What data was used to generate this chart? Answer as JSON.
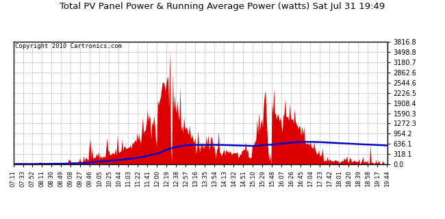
{
  "title": "Total PV Panel Power & Running Average Power (watts) Sat Jul 31 19:49",
  "copyright": "Copyright 2010 Cartronics.com",
  "background_color": "#ffffff",
  "plot_bg_color": "#ffffff",
  "grid_color": "#bbbbbb",
  "bar_color": "#dd0000",
  "line_color": "#0000cc",
  "yticks": [
    0.0,
    318.1,
    636.1,
    954.2,
    1272.3,
    1590.3,
    1908.4,
    2226.5,
    2544.6,
    2862.6,
    3180.7,
    3498.8,
    3816.8
  ],
  "ymax": 3816.8,
  "xtick_labels": [
    "07:11",
    "07:33",
    "07:52",
    "08:11",
    "08:30",
    "08:49",
    "09:08",
    "09:27",
    "09:46",
    "10:05",
    "10:25",
    "10:44",
    "11:03",
    "11:22",
    "11:41",
    "12:00",
    "12:19",
    "12:38",
    "12:57",
    "13:16",
    "13:35",
    "13:54",
    "14:13",
    "14:32",
    "14:51",
    "15:10",
    "15:29",
    "15:48",
    "16:07",
    "16:26",
    "16:45",
    "17:04",
    "17:23",
    "17:42",
    "18:01",
    "18:20",
    "18:39",
    "18:58",
    "19:17",
    "19:44"
  ],
  "num_points": 400
}
